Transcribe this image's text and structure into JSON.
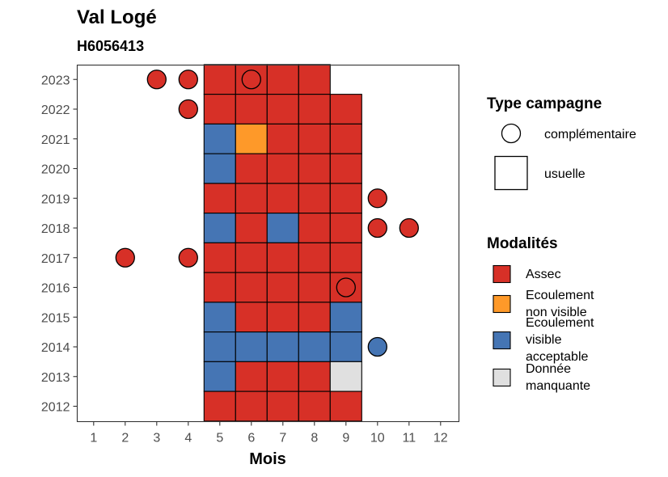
{
  "chart_data": {
    "type": "heatmap",
    "title": "Val Logé",
    "subtitle": "H6056413",
    "xlabel": "Mois",
    "ylabel": "",
    "x_ticks": [
      1,
      2,
      3,
      4,
      5,
      6,
      7,
      8,
      9,
      10,
      11,
      12
    ],
    "y_ticks": [
      2012,
      2013,
      2014,
      2015,
      2016,
      2017,
      2018,
      2019,
      2020,
      2021,
      2022,
      2023
    ],
    "colors": {
      "Assec": "#d73027",
      "Ecoulement non visible": "#fe9929",
      "Ecoulement visible acceptable": "#4575b4",
      "Donnée manquante": "#e0e0e0"
    },
    "usuelle": [
      {
        "year": 2023,
        "months": [
          5,
          6,
          7,
          8
        ],
        "values": [
          "Assec",
          "Assec",
          "Assec",
          "Assec"
        ]
      },
      {
        "year": 2022,
        "months": [
          5,
          6,
          7,
          8,
          9
        ],
        "values": [
          "Assec",
          "Assec",
          "Assec",
          "Assec",
          "Assec"
        ]
      },
      {
        "year": 2021,
        "months": [
          5,
          6,
          7,
          8,
          9
        ],
        "values": [
          "Ecoulement visible acceptable",
          "Ecoulement non visible",
          "Assec",
          "Assec",
          "Assec"
        ]
      },
      {
        "year": 2020,
        "months": [
          5,
          6,
          7,
          8,
          9
        ],
        "values": [
          "Ecoulement visible acceptable",
          "Assec",
          "Assec",
          "Assec",
          "Assec"
        ]
      },
      {
        "year": 2019,
        "months": [
          5,
          6,
          7,
          8,
          9
        ],
        "values": [
          "Assec",
          "Assec",
          "Assec",
          "Assec",
          "Assec"
        ]
      },
      {
        "year": 2018,
        "months": [
          5,
          6,
          7,
          8,
          9
        ],
        "values": [
          "Ecoulement visible acceptable",
          "Assec",
          "Ecoulement visible acceptable",
          "Assec",
          "Assec"
        ]
      },
      {
        "year": 2017,
        "months": [
          5,
          6,
          7,
          8,
          9
        ],
        "values": [
          "Assec",
          "Assec",
          "Assec",
          "Assec",
          "Assec"
        ]
      },
      {
        "year": 2016,
        "months": [
          5,
          6,
          7,
          8,
          9
        ],
        "values": [
          "Assec",
          "Assec",
          "Assec",
          "Assec",
          "Assec"
        ]
      },
      {
        "year": 2015,
        "months": [
          5,
          6,
          7,
          8,
          9
        ],
        "values": [
          "Ecoulement visible acceptable",
          "Assec",
          "Assec",
          "Assec",
          "Ecoulement visible acceptable"
        ]
      },
      {
        "year": 2014,
        "months": [
          5,
          6,
          7,
          8,
          9
        ],
        "values": [
          "Ecoulement visible acceptable",
          "Ecoulement visible acceptable",
          "Ecoulement visible acceptable",
          "Ecoulement visible acceptable",
          "Ecoulement visible acceptable"
        ]
      },
      {
        "year": 2013,
        "months": [
          5,
          6,
          7,
          8,
          9
        ],
        "values": [
          "Ecoulement visible acceptable",
          "Assec",
          "Assec",
          "Assec",
          "Donnée manquante"
        ]
      },
      {
        "year": 2012,
        "months": [
          5,
          6,
          7,
          8,
          9
        ],
        "values": [
          "Assec",
          "Assec",
          "Assec",
          "Assec",
          "Assec"
        ]
      }
    ],
    "complementaire": [
      {
        "year": 2023,
        "month": 3,
        "value": "Assec"
      },
      {
        "year": 2023,
        "month": 4,
        "value": "Assec"
      },
      {
        "year": 2023,
        "month": 6,
        "value": "Assec"
      },
      {
        "year": 2022,
        "month": 4,
        "value": "Assec"
      },
      {
        "year": 2019,
        "month": 10,
        "value": "Assec"
      },
      {
        "year": 2018,
        "month": 10,
        "value": "Assec"
      },
      {
        "year": 2018,
        "month": 11,
        "value": "Assec"
      },
      {
        "year": 2017,
        "month": 2,
        "value": "Assec"
      },
      {
        "year": 2017,
        "month": 4,
        "value": "Assec"
      },
      {
        "year": 2016,
        "month": 9,
        "value": "Assec"
      },
      {
        "year": 2014,
        "month": 10,
        "value": "Ecoulement visible acceptable"
      }
    ],
    "legend_type": {
      "title": "Type campagne",
      "items": [
        {
          "label": "complémentaire",
          "shape": "circle"
        },
        {
          "label": "usuelle",
          "shape": "square"
        }
      ]
    },
    "legend_modalites": {
      "title": "Modalités",
      "items": [
        {
          "key": "Assec",
          "lines": [
            "Assec"
          ]
        },
        {
          "key": "Ecoulement non visible",
          "lines": [
            "Ecoulement",
            "non visible"
          ]
        },
        {
          "key": "Ecoulement visible acceptable",
          "lines": [
            "Ecoulement",
            "visible",
            "acceptable"
          ]
        },
        {
          "key": "Donnée manquante",
          "lines": [
            "Donnée",
            "manquante"
          ]
        }
      ]
    },
    "legend_placement": "right",
    "grid": false
  }
}
